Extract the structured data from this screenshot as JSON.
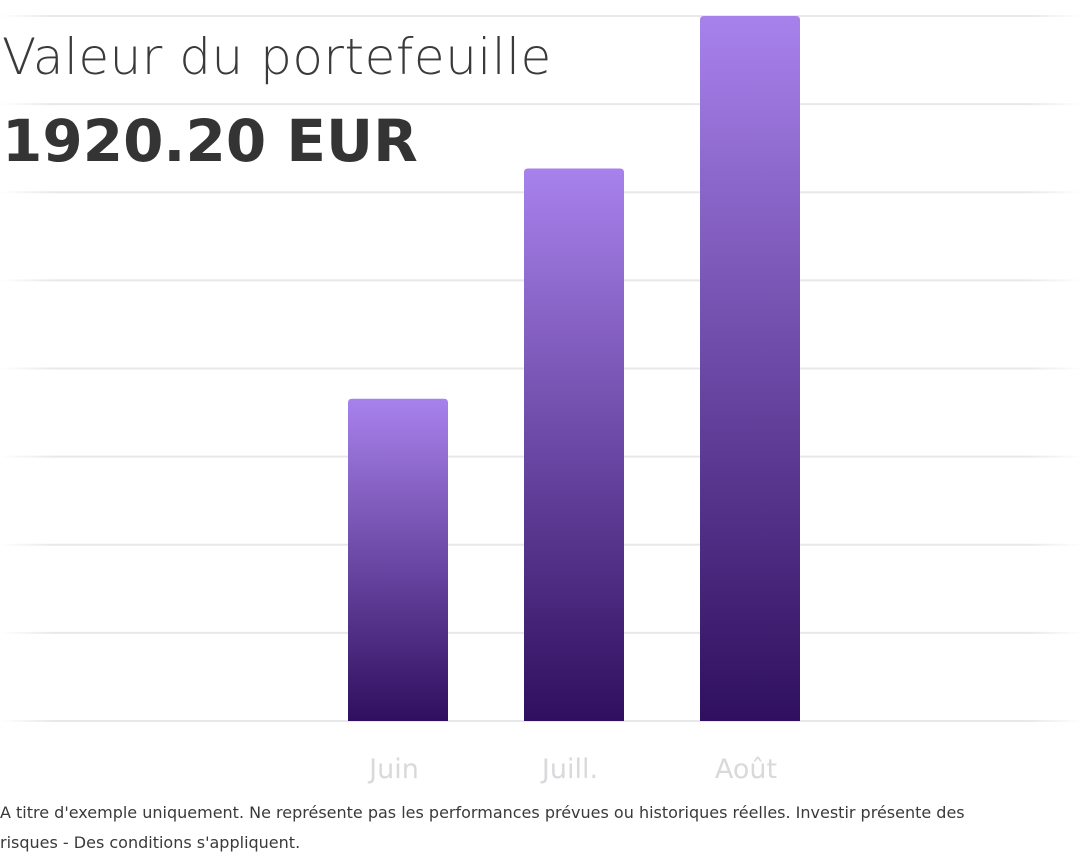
{
  "header": {
    "title": "Valeur du portefeuille",
    "value": "1920.20 EUR"
  },
  "chart_data": {
    "type": "bar",
    "categories": [
      "Juin",
      "Juill.",
      "Août"
    ],
    "values": [
      1120,
      1920,
      2450
    ],
    "ylim": [
      0,
      2450
    ],
    "grid": true,
    "gridlines": 8,
    "title": "",
    "xlabel": "",
    "ylabel": ""
  },
  "colors": {
    "bar_top": "#a882ec",
    "bar_bottom": "#2f0f5e",
    "grid": "#e8e8ea",
    "tick_label": "#d9d9dc",
    "text": "#343434"
  },
  "footer": {
    "disclaimer": "A titre d'exemple uniquement. Ne représente pas les performances prévues ou historiques réelles. Investir présente des risques - Des conditions s'appliquent."
  }
}
